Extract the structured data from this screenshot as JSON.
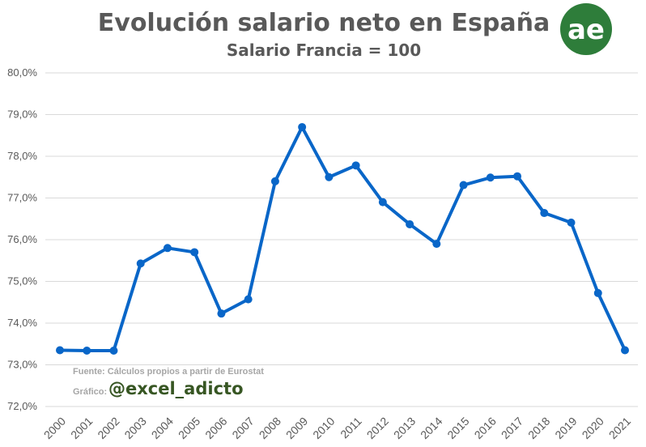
{
  "chart_data": {
    "type": "line",
    "title": "Evolución salario neto en España",
    "subtitle": "Salario Francia = 100",
    "xlabel": "",
    "ylabel": "",
    "x": [
      "2000",
      "2001",
      "2002",
      "2003",
      "2004",
      "2005",
      "2006",
      "2007",
      "2008",
      "2009",
      "2010",
      "2011",
      "2012",
      "2013",
      "2014",
      "2015",
      "2016",
      "2017",
      "2018",
      "2019",
      "2020",
      "2021"
    ],
    "series": [
      {
        "values": [
          73.35,
          73.34,
          73.34,
          75.43,
          75.8,
          75.7,
          74.23,
          74.57,
          77.4,
          78.7,
          77.5,
          77.78,
          76.9,
          76.37,
          75.9,
          77.31,
          77.49,
          77.52,
          76.64,
          76.41,
          74.72,
          73.35
        ]
      }
    ],
    "ylim": [
      72,
      80
    ],
    "yticks": [
      72,
      73,
      74,
      75,
      76,
      77,
      78,
      79,
      80
    ],
    "ytick_labels": [
      "72,0%",
      "73,0%",
      "74,0%",
      "75,0%",
      "76,0%",
      "77,0%",
      "78,0%",
      "79,0%",
      "80,0%"
    ],
    "grid": true,
    "legend": "none",
    "line_color": "#0966C8"
  },
  "annotations": {
    "source": "Fuente: Cálculos propios a partir de Eurostat",
    "credit_label": "Gráfico:",
    "credit_handle": "@excel_adicto"
  },
  "logo": {
    "text": "ae",
    "color": "#2E7D3A"
  }
}
